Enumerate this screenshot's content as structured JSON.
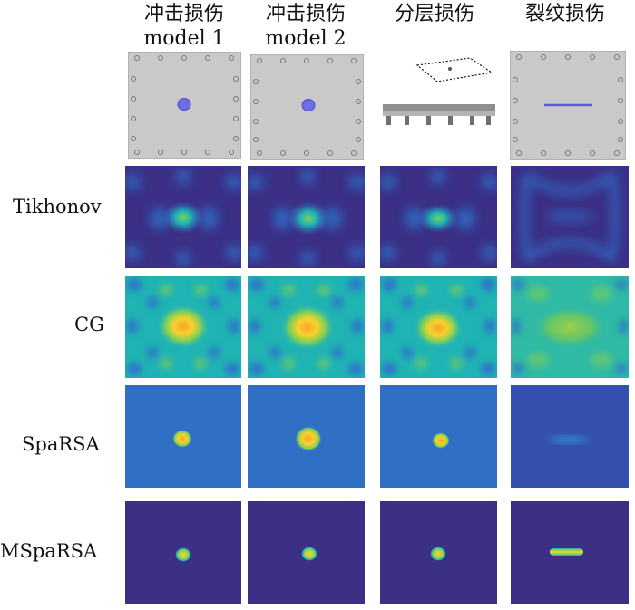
{
  "column_headers": [
    {
      "line1": "冲击损伤",
      "line2": "model 1"
    },
    {
      "line1": "冲击损伤",
      "line2": "model 2"
    },
    {
      "line1": "分层损伤",
      "line2": ""
    },
    {
      "line1": "裂纹损伤",
      "line2": ""
    }
  ],
  "row_labels": [
    "Tikhonov",
    "CG",
    "SpaRSA",
    "MSpaRSA"
  ],
  "colors": {
    "viridis_dark": "#3b2f86",
    "viridis_blue": "#2f73c9",
    "viridis_teal": "#1fb3b3",
    "viridis_green": "#7ecf5a",
    "viridis_yellow": "#f7d22b",
    "plate_gray": "#c9c9c9",
    "damage_blue": "#6e6ee6"
  }
}
